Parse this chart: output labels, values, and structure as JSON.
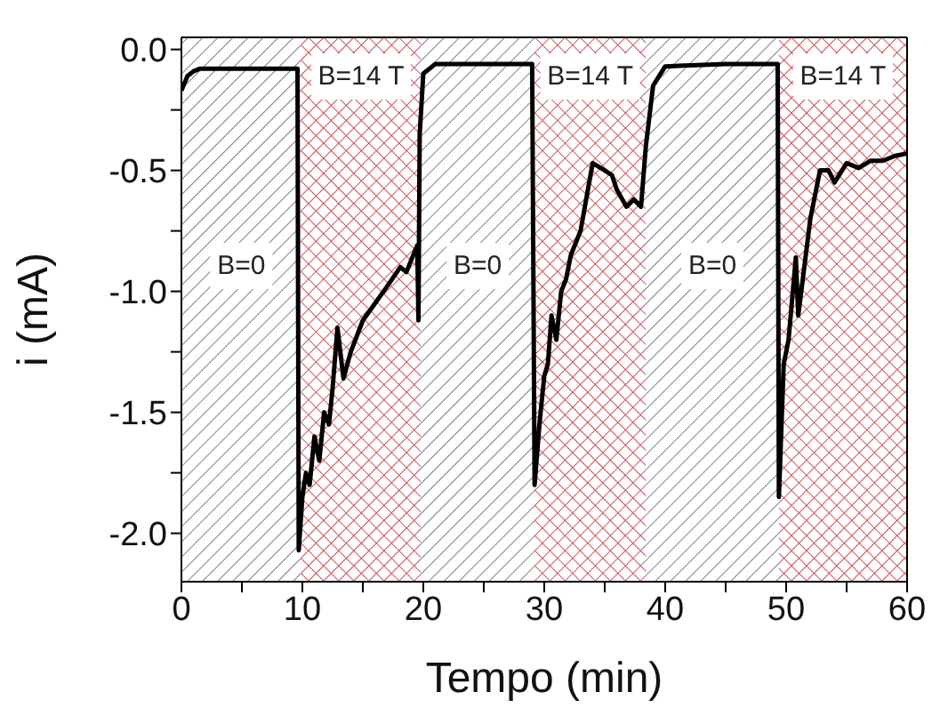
{
  "chart_data": {
    "type": "line",
    "xlabel": "Tempo (min)",
    "ylabel": "i (mA)",
    "x": [
      0,
      0.5,
      1,
      1.5,
      3,
      6,
      9.6,
      9.7,
      10,
      10.3,
      10.6,
      11,
      11.4,
      11.8,
      12.2,
      12.5,
      12.9,
      13.4,
      14,
      15,
      16,
      17,
      18.1,
      18.6,
      19.5,
      19.6,
      19.7,
      20,
      21,
      25,
      29,
      29.2,
      29.6,
      30,
      30.3,
      30.6,
      31,
      31.4,
      31.8,
      32.2,
      33,
      34,
      35,
      35.6,
      36,
      36.8,
      37.4,
      38,
      38.4,
      39,
      40,
      45,
      49.3,
      49.4,
      49.8,
      50.2,
      50.8,
      51,
      51.5,
      52,
      52.8,
      53.5,
      54,
      55,
      56,
      57,
      58,
      59,
      60
    ],
    "series": [
      {
        "color": "#000000",
        "values": [
          -0.17,
          -0.11,
          -0.09,
          -0.08,
          -0.08,
          -0.08,
          -0.08,
          -2.07,
          -1.85,
          -1.75,
          -1.8,
          -1.6,
          -1.7,
          -1.5,
          -1.55,
          -1.4,
          -1.15,
          -1.36,
          -1.25,
          -1.12,
          -1.05,
          -0.98,
          -0.9,
          -0.92,
          -0.81,
          -1.12,
          -0.35,
          -0.1,
          -0.06,
          -0.06,
          -0.06,
          -1.8,
          -1.55,
          -1.35,
          -1.3,
          -1.1,
          -1.2,
          -1.0,
          -0.95,
          -0.85,
          -0.75,
          -0.47,
          -0.5,
          -0.52,
          -0.58,
          -0.65,
          -0.62,
          -0.65,
          -0.4,
          -0.15,
          -0.07,
          -0.06,
          -0.06,
          -1.85,
          -1.3,
          -1.2,
          -0.86,
          -1.1,
          -0.9,
          -0.7,
          -0.5,
          -0.5,
          -0.55,
          -0.47,
          -0.49,
          -0.46,
          -0.46,
          -0.44,
          -0.43
        ]
      }
    ],
    "xlim": [
      0,
      60
    ],
    "ylim": [
      -2.2,
      0.05
    ],
    "xticks": [
      0,
      {
        "value": 5,
        "label": null
      },
      10,
      {
        "value": 15,
        "label": null
      },
      20,
      {
        "value": 25,
        "label": null
      },
      30,
      {
        "value": 35,
        "label": null
      },
      40,
      {
        "value": 45,
        "label": null
      },
      50,
      {
        "value": 55,
        "label": null
      },
      60
    ],
    "yticks": [
      {
        "value": 0,
        "label": "0.0"
      },
      {
        "value": -0.25,
        "label": null
      },
      {
        "value": -0.5,
        "label": "-0.5"
      },
      {
        "value": -0.75,
        "label": null
      },
      {
        "value": -1,
        "label": "-1.0"
      },
      {
        "value": -1.25,
        "label": null
      },
      {
        "value": -1.5,
        "label": "-1.5"
      },
      {
        "value": -1.75,
        "label": null
      },
      {
        "value": -2,
        "label": "-2.0"
      }
    ],
    "bands": [
      {
        "axis": "x",
        "from": 0,
        "to": 9.9,
        "label": "B=0",
        "color": "#555555"
      },
      {
        "axis": "x",
        "from": 9.9,
        "to": 19.8,
        "label": "B=14 T",
        "color": "#c0282d"
      },
      {
        "axis": "x",
        "from": 19.8,
        "to": 29.2,
        "label": "B=0",
        "color": "#555555"
      },
      {
        "axis": "x",
        "from": 29.2,
        "to": 38.4,
        "label": "B=14 T",
        "color": "#c0282d"
      },
      {
        "axis": "x",
        "from": 38.4,
        "to": 49.4,
        "label": "B=0",
        "color": "#555555"
      },
      {
        "axis": "x",
        "from": 49.4,
        "to": 60,
        "label": "B=14 T",
        "color": "#c0282d"
      }
    ],
    "marker": "none",
    "line_style": "solid"
  }
}
